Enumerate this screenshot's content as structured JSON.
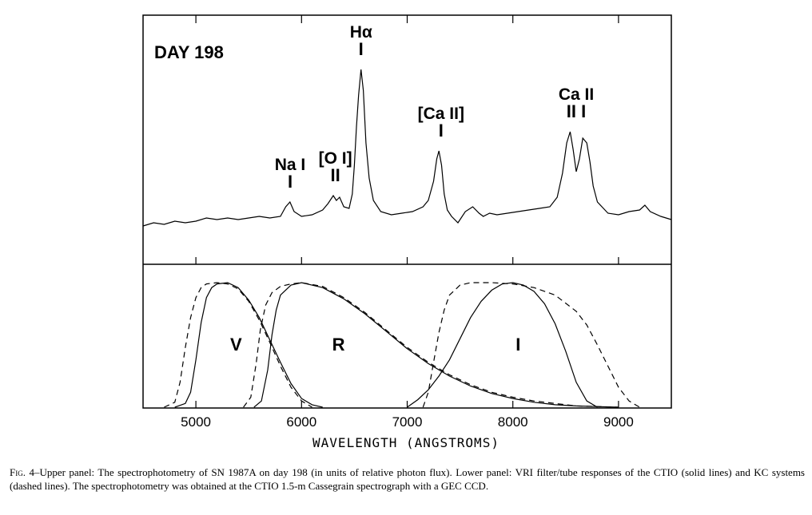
{
  "chart_data": [
    {
      "type": "line",
      "panel": "upper",
      "title": "DAY 198",
      "xlim": [
        4500,
        9500
      ],
      "series": [
        {
          "x": [
            4500,
            4600,
            4700,
            4800,
            4900,
            5000,
            5100,
            5200,
            5300,
            5400,
            5500,
            5600,
            5700,
            5800,
            5850,
            5890,
            5930,
            6000,
            6100,
            6200,
            6250,
            6300,
            6330,
            6360,
            6400,
            6450,
            6480,
            6500,
            6520,
            6540,
            6563,
            6585,
            6610,
            6640,
            6680,
            6750,
            6850,
            6950,
            7050,
            7150,
            7200,
            7250,
            7280,
            7300,
            7325,
            7350,
            7380,
            7420,
            7480,
            7550,
            7620,
            7680,
            7720,
            7780,
            7850,
            7950,
            8050,
            8150,
            8250,
            8350,
            8420,
            8470,
            8510,
            8542,
            8570,
            8600,
            8630,
            8662,
            8700,
            8730,
            8760,
            8800,
            8900,
            9000,
            9100,
            9200,
            9250,
            9300,
            9400,
            9500
          ],
          "y": [
            0.0,
            0.02,
            0.01,
            0.03,
            0.02,
            0.03,
            0.05,
            0.04,
            0.05,
            0.04,
            0.05,
            0.06,
            0.05,
            0.06,
            0.12,
            0.15,
            0.09,
            0.06,
            0.07,
            0.1,
            0.14,
            0.19,
            0.16,
            0.18,
            0.12,
            0.11,
            0.2,
            0.38,
            0.62,
            0.82,
            0.98,
            0.85,
            0.52,
            0.3,
            0.16,
            0.09,
            0.07,
            0.08,
            0.09,
            0.12,
            0.16,
            0.28,
            0.42,
            0.47,
            0.38,
            0.2,
            0.1,
            0.06,
            0.02,
            0.09,
            0.12,
            0.08,
            0.06,
            0.08,
            0.07,
            0.08,
            0.09,
            0.1,
            0.11,
            0.12,
            0.18,
            0.33,
            0.52,
            0.59,
            0.48,
            0.34,
            0.42,
            0.55,
            0.52,
            0.4,
            0.25,
            0.15,
            0.08,
            0.07,
            0.09,
            0.1,
            0.13,
            0.09,
            0.06,
            0.04
          ]
        }
      ],
      "annotations": [
        {
          "text": "Hα",
          "mark": "I",
          "x": 6563
        },
        {
          "text": "Na I",
          "mark": "I",
          "x": 5892
        },
        {
          "text": "[O I]",
          "mark": "II",
          "x": 6320
        },
        {
          "text": "[Ca II]",
          "mark": "I",
          "x": 7320
        },
        {
          "text": "Ca II",
          "mark": "II I",
          "x": 8600
        }
      ]
    },
    {
      "type": "line",
      "panel": "lower",
      "xlabel": "WAVELENGTH  (ANGSTROMS)",
      "xlim": [
        4500,
        9500
      ],
      "xticks": [
        5000,
        6000,
        7000,
        8000,
        9000
      ],
      "ylim": [
        0,
        1
      ],
      "series": [
        {
          "name": "V",
          "style": "solid",
          "x": [
            4800,
            4900,
            4950,
            5000,
            5050,
            5100,
            5150,
            5200,
            5300,
            5400,
            5500,
            5600,
            5700,
            5800,
            5900,
            6000,
            6100,
            6200
          ],
          "y": [
            0.0,
            0.03,
            0.12,
            0.38,
            0.68,
            0.88,
            0.96,
            0.99,
            1.0,
            0.96,
            0.86,
            0.72,
            0.54,
            0.36,
            0.19,
            0.07,
            0.02,
            0.0
          ]
        },
        {
          "name": "V",
          "style": "dashed",
          "x": [
            4700,
            4800,
            4850,
            4900,
            4950,
            5000,
            5050,
            5100,
            5200,
            5300,
            5400,
            5500,
            5600,
            5700,
            5800,
            5900,
            6000,
            6100
          ],
          "y": [
            0.0,
            0.04,
            0.2,
            0.48,
            0.72,
            0.88,
            0.96,
            0.99,
            1.0,
            0.99,
            0.95,
            0.85,
            0.7,
            0.52,
            0.33,
            0.16,
            0.05,
            0.0
          ]
        },
        {
          "name": "R",
          "style": "solid",
          "x": [
            5550,
            5620,
            5680,
            5720,
            5760,
            5800,
            5900,
            6000,
            6200,
            6400,
            6600,
            6800,
            7000,
            7200,
            7400,
            7600,
            7800,
            8000,
            8200,
            8400,
            8600,
            8800,
            9000
          ],
          "y": [
            0.0,
            0.05,
            0.3,
            0.58,
            0.78,
            0.9,
            0.98,
            1.0,
            0.96,
            0.87,
            0.75,
            0.61,
            0.47,
            0.35,
            0.25,
            0.17,
            0.11,
            0.07,
            0.04,
            0.02,
            0.01,
            0.005,
            0.0
          ]
        },
        {
          "name": "R",
          "style": "dashed",
          "x": [
            5450,
            5520,
            5570,
            5610,
            5660,
            5720,
            5800,
            5900,
            6000,
            6200,
            6400,
            6600,
            6800,
            7000,
            7200,
            7400,
            7600,
            7800,
            8000,
            8200,
            8400,
            8600,
            8800,
            9000
          ],
          "y": [
            0.0,
            0.08,
            0.35,
            0.62,
            0.82,
            0.92,
            0.97,
            0.99,
            1.0,
            0.97,
            0.88,
            0.76,
            0.62,
            0.48,
            0.36,
            0.26,
            0.18,
            0.12,
            0.08,
            0.05,
            0.03,
            0.01,
            0.005,
            0.0
          ]
        },
        {
          "name": "I",
          "style": "solid",
          "x": [
            7000,
            7100,
            7200,
            7300,
            7400,
            7500,
            7600,
            7700,
            7800,
            7900,
            8000,
            8100,
            8200,
            8300,
            8400,
            8500,
            8600,
            8700,
            8800
          ],
          "y": [
            0.0,
            0.06,
            0.14,
            0.25,
            0.38,
            0.55,
            0.72,
            0.85,
            0.94,
            0.99,
            1.0,
            0.98,
            0.93,
            0.83,
            0.67,
            0.45,
            0.2,
            0.05,
            0.0
          ]
        },
        {
          "name": "I",
          "style": "dashed",
          "x": [
            7150,
            7200,
            7250,
            7300,
            7350,
            7400,
            7500,
            7600,
            7800,
            8000,
            8200,
            8400,
            8600,
            8700,
            8800,
            8900,
            9000,
            9100,
            9200
          ],
          "y": [
            0.0,
            0.12,
            0.36,
            0.6,
            0.78,
            0.9,
            0.98,
            1.0,
            1.0,
            0.99,
            0.96,
            0.9,
            0.77,
            0.66,
            0.5,
            0.33,
            0.16,
            0.05,
            0.0
          ]
        }
      ],
      "band_labels": [
        {
          "text": "V",
          "x": 5380
        },
        {
          "text": "R",
          "x": 6350
        },
        {
          "text": "I",
          "x": 8050
        }
      ]
    }
  ],
  "caption": {
    "label": "Fig.",
    "text": " 4–Upper panel: The spectrophotometry of SN 1987A on day 198 (in units of relative photon flux). Lower panel: VRI filter/tube responses of the CTIO (solid lines) and KC systems (dashed lines). The spectrophotometry was obtained at the CTIO 1.5-m Cassegrain spectrograph with a GEC CCD."
  }
}
